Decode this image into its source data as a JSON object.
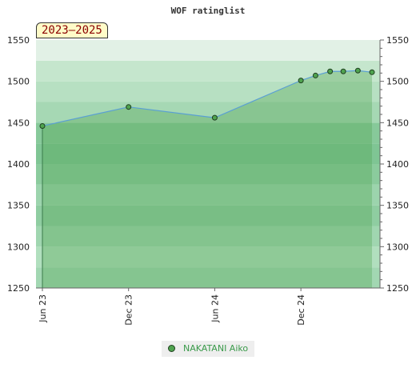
{
  "chart_data": {
    "type": "area",
    "title": "WOF ratinglist",
    "period_label": "2023–2025",
    "y_axis": {
      "ylim": [
        1250,
        1550
      ],
      "ticks": [
        "1250",
        "1300",
        "1350",
        "1400",
        "1450",
        "1500",
        "1550"
      ],
      "tick_values": [
        1250,
        1300,
        1350,
        1400,
        1450,
        1500,
        1550
      ],
      "left_and_right": true
    },
    "x_axis": {
      "ticks": [
        "Jun 23",
        "Dec 23",
        "Jun 24",
        "Dec 24"
      ],
      "tick_dates": [
        "2023-06-01",
        "2023-12-01",
        "2024-06-01",
        "2024-12-01"
      ],
      "xlim": [
        "2023-06-01",
        "2025-05-01"
      ]
    },
    "series": [
      {
        "name": "NAKATANI Aiko",
        "color": "#4fa34f",
        "line_color": "#5a9fd4",
        "points": [
          {
            "x": "2023-06-01",
            "y": 1446
          },
          {
            "x": "2023-12-01",
            "y": 1469
          },
          {
            "x": "2024-06-01",
            "y": 1456
          },
          {
            "x": "2024-12-01",
            "y": 1501
          },
          {
            "x": "2025-01-01",
            "y": 1507
          },
          {
            "x": "2025-02-01",
            "y": 1512
          },
          {
            "x": "2025-03-01",
            "y": 1512
          },
          {
            "x": "2025-04-01",
            "y": 1513
          },
          {
            "x": "2025-05-01",
            "y": 1511
          }
        ]
      }
    ],
    "band_colors": [
      "#7fc794",
      "#8fcda0",
      "#9bd3ab",
      "#a8d9b6",
      "#b6dfc2",
      "#c4e5cd",
      "#d2ebd9",
      "#e3f2e7",
      "#eff7f1"
    ],
    "grid": false,
    "legend_position": "bottom"
  }
}
